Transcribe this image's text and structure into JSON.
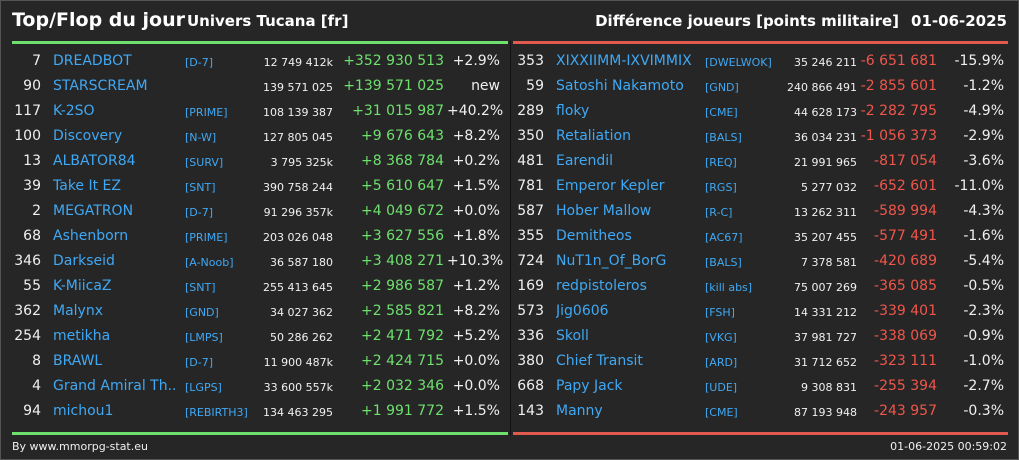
{
  "header": {
    "title": "Top/Flop du jour",
    "universe": "Univers Tucana [fr]",
    "metric": "Différence joueurs [points militaire]",
    "date": "01-06-2025"
  },
  "colors": {
    "gain": "#6ee06e",
    "loss": "#f0564a",
    "player_link": "#3fa9f5",
    "background": "#262626"
  },
  "top": [
    {
      "rank": "7",
      "name": "DREADBOT",
      "alliance": "[D-7]",
      "points": "12 749 412k",
      "diff": "+352 930 513",
      "pct": "+2.9%"
    },
    {
      "rank": "90",
      "name": "STARSCREAM",
      "alliance": "",
      "points": "139 571 025",
      "diff": "+139 571 025",
      "pct": "new"
    },
    {
      "rank": "117",
      "name": "K-2SO",
      "alliance": "[PRIME]",
      "points": "108 139 387",
      "diff": "+31 015 987",
      "pct": "+40.2%"
    },
    {
      "rank": "100",
      "name": "Discovery",
      "alliance": "[N-W]",
      "points": "127 805 045",
      "diff": "+9 676 643",
      "pct": "+8.2%"
    },
    {
      "rank": "13",
      "name": "ALBATOR84",
      "alliance": "[SURV]",
      "points": "3 795 325k",
      "diff": "+8 368 784",
      "pct": "+0.2%"
    },
    {
      "rank": "39",
      "name": "Take It EZ",
      "alliance": "[SNT]",
      "points": "390 758 244",
      "diff": "+5 610 647",
      "pct": "+1.5%"
    },
    {
      "rank": "2",
      "name": "MEGATRON",
      "alliance": "[D-7]",
      "points": "91 296 357k",
      "diff": "+4 049 672",
      "pct": "+0.0%"
    },
    {
      "rank": "68",
      "name": "Ashenborn",
      "alliance": "[PRIME]",
      "points": "203 026 048",
      "diff": "+3 627 556",
      "pct": "+1.8%"
    },
    {
      "rank": "346",
      "name": "Darkseid",
      "alliance": "[A-Noob]",
      "points": "36 587 180",
      "diff": "+3 408 271",
      "pct": "+10.3%"
    },
    {
      "rank": "55",
      "name": "K-MiicaZ",
      "alliance": "[SNT]",
      "points": "255 413 645",
      "diff": "+2 986 587",
      "pct": "+1.2%"
    },
    {
      "rank": "362",
      "name": "Malynx",
      "alliance": "[GND]",
      "points": "34 027 362",
      "diff": "+2 585 821",
      "pct": "+8.2%"
    },
    {
      "rank": "254",
      "name": "metikha",
      "alliance": "[LMPS]",
      "points": "50 286 262",
      "diff": "+2 471 792",
      "pct": "+5.2%"
    },
    {
      "rank": "8",
      "name": "BRAWL",
      "alliance": "[D-7]",
      "points": "11 900 487k",
      "diff": "+2 424 715",
      "pct": "+0.0%"
    },
    {
      "rank": "4",
      "name": "Grand Amiral Th...",
      "alliance": "[LGPS]",
      "points": "33 600 557k",
      "diff": "+2 032 346",
      "pct": "+0.0%"
    },
    {
      "rank": "94",
      "name": "michou1",
      "alliance": "[REBIRTH3]",
      "points": "134 463 295",
      "diff": "+1 991 772",
      "pct": "+1.5%"
    }
  ],
  "flop": [
    {
      "rank": "353",
      "name": "XIXXIIMM-IXVIMMIX",
      "alliance": "[DWELWOK]",
      "points": "35 246 211",
      "diff": "-6 651 681",
      "pct": "-15.9%"
    },
    {
      "rank": "59",
      "name": "Satoshi Nakamoto",
      "alliance": "[GND]",
      "points": "240 866 491",
      "diff": "-2 855 601",
      "pct": "-1.2%"
    },
    {
      "rank": "289",
      "name": "floky",
      "alliance": "[CME]",
      "points": "44 628 173",
      "diff": "-2 282 795",
      "pct": "-4.9%"
    },
    {
      "rank": "350",
      "name": "Retaliation",
      "alliance": "[BALS]",
      "points": "36 034 231",
      "diff": "-1 056 373",
      "pct": "-2.9%"
    },
    {
      "rank": "481",
      "name": "Earendil",
      "alliance": "[REQ]",
      "points": "21 991 965",
      "diff": "-817 054",
      "pct": "-3.6%"
    },
    {
      "rank": "781",
      "name": "Emperor Kepler",
      "alliance": "[RGS]",
      "points": "5 277 032",
      "diff": "-652 601",
      "pct": "-11.0%"
    },
    {
      "rank": "587",
      "name": "Hober Mallow",
      "alliance": "[R-C]",
      "points": "13 262 311",
      "diff": "-589 994",
      "pct": "-4.3%"
    },
    {
      "rank": "355",
      "name": "Demitheos",
      "alliance": "[AC67]",
      "points": "35 207 455",
      "diff": "-577 491",
      "pct": "-1.6%"
    },
    {
      "rank": "724",
      "name": "NuT1n_Of_BorG",
      "alliance": "[BALS]",
      "points": "7 378 581",
      "diff": "-420 689",
      "pct": "-5.4%"
    },
    {
      "rank": "169",
      "name": "redpistoleros",
      "alliance": "[kill abs]",
      "points": "75 007 269",
      "diff": "-365 085",
      "pct": "-0.5%"
    },
    {
      "rank": "573",
      "name": "Jig0606",
      "alliance": "[FSH]",
      "points": "14 331 212",
      "diff": "-339 401",
      "pct": "-2.3%"
    },
    {
      "rank": "336",
      "name": "Skoll",
      "alliance": "[VKG]",
      "points": "37 981 727",
      "diff": "-338 069",
      "pct": "-0.9%"
    },
    {
      "rank": "380",
      "name": "Chief Transit",
      "alliance": "[ARD]",
      "points": "31 712 652",
      "diff": "-323 111",
      "pct": "-1.0%"
    },
    {
      "rank": "668",
      "name": "Papy Jack",
      "alliance": "[UDE]",
      "points": "9 308 831",
      "diff": "-255 394",
      "pct": "-2.7%"
    },
    {
      "rank": "143",
      "name": "Manny",
      "alliance": "[CME]",
      "points": "87 193 948",
      "diff": "-243 957",
      "pct": "-0.3%"
    }
  ],
  "footer": {
    "source": "By www.mmorpg-stat.eu",
    "timestamp": "01-06-2025 00:59:02"
  }
}
